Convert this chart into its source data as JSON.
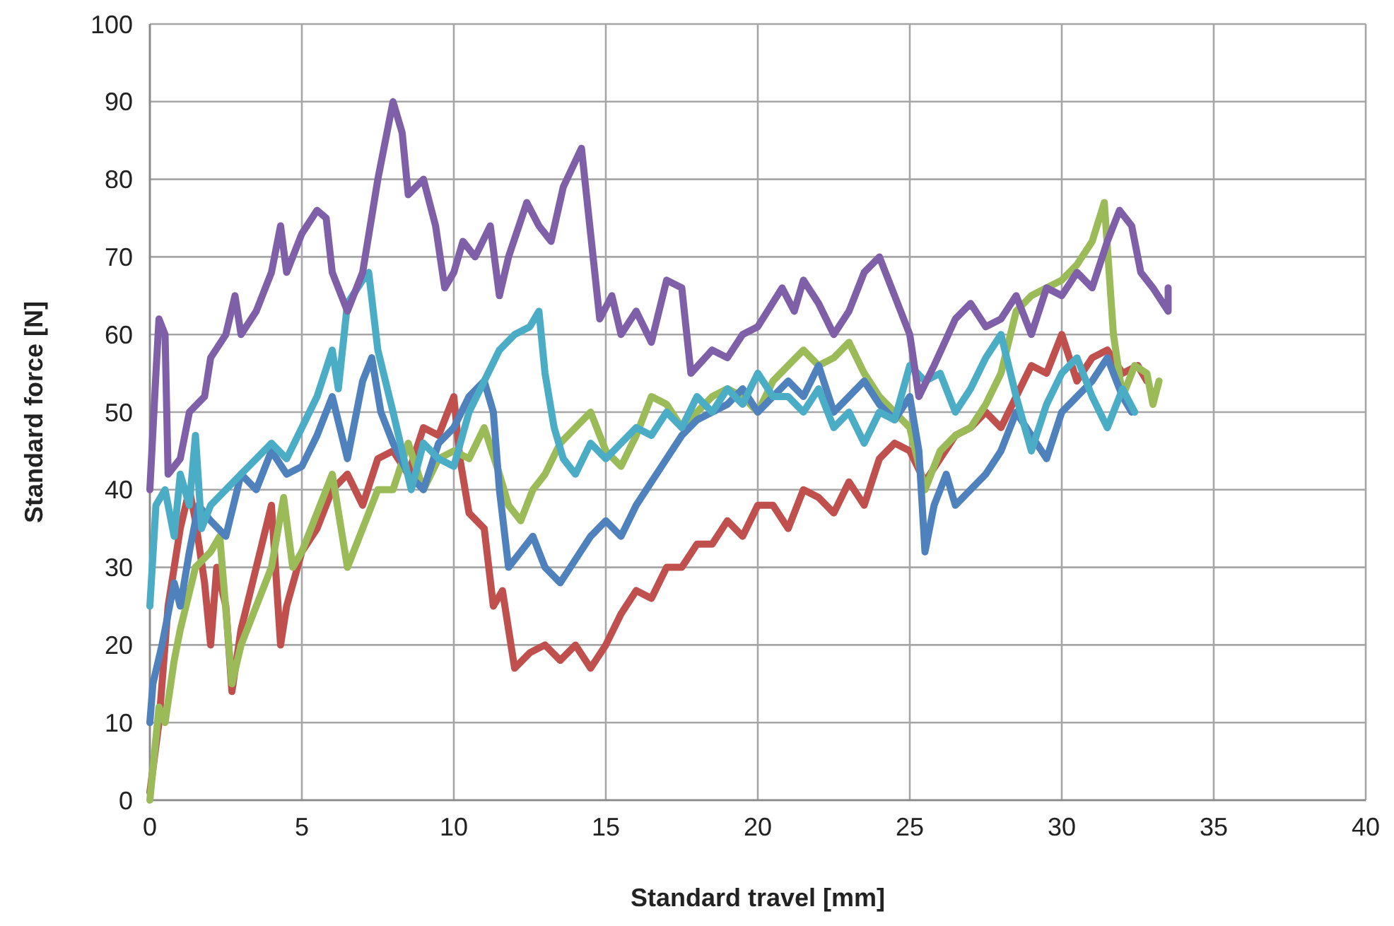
{
  "chart_data": {
    "type": "line",
    "xlabel": "Standard travel [mm]",
    "ylabel": "Standard force [N]",
    "xlim": [
      0,
      40
    ],
    "xticks": [
      0,
      5,
      10,
      15,
      20,
      25,
      30,
      35,
      40
    ],
    "ylim": [
      0,
      100
    ],
    "yticks": [
      0,
      10,
      20,
      30,
      40,
      50,
      60,
      70,
      80,
      90,
      100
    ],
    "grid": true,
    "marker": "none",
    "line_style": "solid",
    "series": [
      {
        "color": "#c0504d",
        "x": [
          0,
          0.3,
          0.6,
          1,
          1.3,
          1.5,
          1.8,
          2,
          2.2,
          2.5,
          2.7,
          3,
          3.5,
          4,
          4.3,
          4.5,
          5,
          5.5,
          6,
          6.5,
          7,
          7.5,
          8,
          8.5,
          9,
          9.5,
          10,
          10.2,
          10.5,
          11,
          11.3,
          11.6,
          12,
          12.5,
          13,
          13.5,
          14,
          14.5,
          15,
          15.5,
          16,
          16.5,
          17,
          17.5,
          18,
          18.5,
          19,
          19.5,
          20,
          20.5,
          21,
          21.5,
          22,
          22.5,
          23,
          23.5,
          24,
          24.5,
          25,
          25.5,
          26,
          26.5,
          27,
          27.5,
          28,
          28.5,
          29,
          29.5,
          30,
          30.5,
          31,
          31.5,
          32,
          32.5,
          32.8
        ],
        "values": [
          1,
          10,
          25,
          35,
          40,
          36,
          28,
          20,
          30,
          25,
          14,
          22,
          30,
          38,
          20,
          25,
          32,
          35,
          40,
          42,
          38,
          44,
          45,
          42,
          48,
          47,
          52,
          44,
          37,
          35,
          25,
          27,
          17,
          19,
          20,
          18,
          20,
          17,
          20,
          24,
          27,
          26,
          30,
          30,
          33,
          33,
          36,
          34,
          38,
          38,
          35,
          40,
          39,
          37,
          41,
          38,
          44,
          46,
          45,
          41,
          44,
          47,
          48,
          50,
          48,
          52,
          56,
          55,
          60,
          54,
          57,
          58,
          55,
          56,
          54
        ]
      },
      {
        "color": "#9bbb59",
        "x": [
          0,
          0.3,
          0.5,
          0.8,
          1,
          1.5,
          2,
          2.3,
          2.7,
          3,
          3.5,
          4,
          4.4,
          4.7,
          5,
          5.5,
          6,
          6.5,
          7,
          7.5,
          8,
          8.5,
          9,
          9.5,
          10,
          10.5,
          11,
          11.5,
          11.8,
          12.2,
          12.6,
          13,
          13.5,
          14,
          14.5,
          15,
          15.5,
          16,
          16.5,
          17,
          17.5,
          18,
          18.5,
          19,
          19.5,
          20,
          20.5,
          21,
          21.5,
          22,
          22.5,
          23,
          23.5,
          24,
          24.5,
          25,
          25.5,
          26,
          26.5,
          27,
          27.5,
          28,
          28.5,
          29,
          29.5,
          30,
          30.5,
          31,
          31.4,
          31.7,
          32,
          32.4,
          32.8,
          33,
          33.2
        ],
        "values": [
          0,
          12,
          10,
          18,
          22,
          30,
          32,
          34,
          15,
          20,
          25,
          30,
          39,
          30,
          32,
          37,
          42,
          30,
          35,
          40,
          40,
          46,
          40,
          44,
          45,
          44,
          48,
          42,
          38,
          36,
          40,
          42,
          46,
          48,
          50,
          45,
          43,
          47,
          52,
          51,
          48,
          50,
          52,
          53,
          52,
          50,
          54,
          56,
          58,
          56,
          57,
          59,
          55,
          52,
          50,
          48,
          40,
          45,
          47,
          48,
          51,
          55,
          63,
          65,
          66,
          67,
          69,
          72,
          77,
          60,
          52,
          56,
          55,
          51,
          54
        ]
      },
      {
        "color": "#4f81bd",
        "x": [
          0,
          0.1,
          0.4,
          0.8,
          1,
          1.3,
          1.6,
          2,
          2.5,
          3,
          3.5,
          4,
          4.5,
          5,
          5.5,
          6,
          6.5,
          7,
          7.3,
          7.6,
          8,
          8.5,
          9,
          9.5,
          10,
          10.5,
          11,
          11.3,
          11.5,
          11.8,
          12.2,
          12.6,
          13,
          13.5,
          14,
          14.5,
          15,
          15.5,
          16,
          16.5,
          17,
          17.5,
          18,
          18.5,
          19,
          19.5,
          20,
          20.5,
          21,
          21.5,
          22,
          22.5,
          23,
          23.5,
          24,
          24.5,
          25,
          25.3,
          25.5,
          25.8,
          26.2,
          26.5,
          27,
          27.5,
          28,
          28.5,
          29,
          29.5,
          30,
          30.5,
          31,
          31.5,
          32,
          32.3
        ],
        "values": [
          10,
          15,
          20,
          28,
          25,
          32,
          38,
          36,
          34,
          42,
          40,
          45,
          42,
          43,
          47,
          52,
          44,
          54,
          57,
          50,
          46,
          42,
          40,
          46,
          48,
          52,
          54,
          50,
          40,
          30,
          32,
          34,
          30,
          28,
          31,
          34,
          36,
          34,
          38,
          41,
          44,
          47,
          49,
          50,
          51,
          53,
          50,
          52,
          54,
          52,
          56,
          50,
          52,
          54,
          51,
          49,
          52,
          45,
          32,
          38,
          42,
          38,
          40,
          42,
          45,
          50,
          47,
          44,
          50,
          52,
          54,
          57,
          52,
          50
        ]
      },
      {
        "color": "#4bacc6",
        "x": [
          0,
          0.2,
          0.5,
          0.8,
          1,
          1.3,
          1.5,
          1.7,
          2,
          2.5,
          3,
          3.5,
          4,
          4.5,
          5,
          5.5,
          6,
          6.2,
          6.5,
          7,
          7.2,
          7.5,
          8,
          8.3,
          8.6,
          9,
          9.5,
          10,
          10.5,
          11,
          11.5,
          12,
          12.5,
          12.8,
          13,
          13.3,
          13.6,
          14,
          14.5,
          15,
          15.5,
          16,
          16.5,
          17,
          17.5,
          18,
          18.5,
          19,
          19.5,
          20,
          20.5,
          21,
          21.5,
          22,
          22.5,
          23,
          23.5,
          24,
          24.5,
          25,
          25.5,
          26,
          26.5,
          27,
          27.5,
          28,
          28.5,
          29,
          29.5,
          30,
          30.5,
          31,
          31.5,
          32,
          32.4
        ],
        "values": [
          25,
          38,
          40,
          34,
          42,
          38,
          47,
          35,
          38,
          40,
          42,
          44,
          46,
          44,
          48,
          52,
          58,
          53,
          64,
          67,
          68,
          58,
          50,
          45,
          40,
          46,
          44,
          43,
          50,
          54,
          58,
          60,
          61,
          63,
          55,
          48,
          44,
          42,
          46,
          44,
          46,
          48,
          47,
          50,
          48,
          52,
          50,
          53,
          51,
          55,
          52,
          52,
          50,
          53,
          48,
          50,
          46,
          50,
          49,
          56,
          54,
          55,
          50,
          53,
          57,
          60,
          52,
          45,
          51,
          55,
          57,
          52,
          48,
          53,
          50
        ]
      },
      {
        "color": "#7f60a8",
        "x": [
          0,
          0.2,
          0.3,
          0.5,
          0.6,
          1,
          1.3,
          1.8,
          2,
          2.5,
          2.8,
          3,
          3.5,
          4,
          4.3,
          4.5,
          5,
          5.5,
          5.8,
          6,
          6.5,
          7,
          7.5,
          8,
          8.3,
          8.5,
          9,
          9.4,
          9.7,
          10,
          10.3,
          10.7,
          11.2,
          11.5,
          11.8,
          12.4,
          12.8,
          13.2,
          13.6,
          14.2,
          14.5,
          14.8,
          15.2,
          15.5,
          16,
          16.5,
          17,
          17.5,
          17.8,
          18.5,
          19,
          19.5,
          20,
          20.8,
          21.2,
          21.5,
          22,
          22.5,
          23,
          23.5,
          24,
          24.5,
          25,
          25.3,
          25.8,
          26.5,
          27,
          27.5,
          28,
          28.5,
          29,
          29.5,
          30,
          30.5,
          31,
          31.5,
          31.9,
          32.3,
          32.6,
          33,
          33.5,
          33.5
        ],
        "values": [
          40,
          55,
          62,
          60,
          42,
          44,
          50,
          52,
          57,
          60,
          65,
          60,
          63,
          68,
          74,
          68,
          73,
          76,
          75,
          68,
          63,
          68,
          80,
          90,
          86,
          78,
          80,
          74,
          66,
          68,
          72,
          70,
          74,
          65,
          70,
          77,
          74,
          72,
          79,
          84,
          73,
          62,
          65,
          60,
          63,
          59,
          67,
          66,
          55,
          58,
          57,
          60,
          61,
          66,
          63,
          67,
          64,
          60,
          63,
          68,
          70,
          65,
          60,
          52,
          56,
          62,
          64,
          61,
          62,
          65,
          60,
          66,
          65,
          68,
          66,
          72,
          76,
          74,
          68,
          66,
          63,
          66
        ]
      }
    ]
  }
}
